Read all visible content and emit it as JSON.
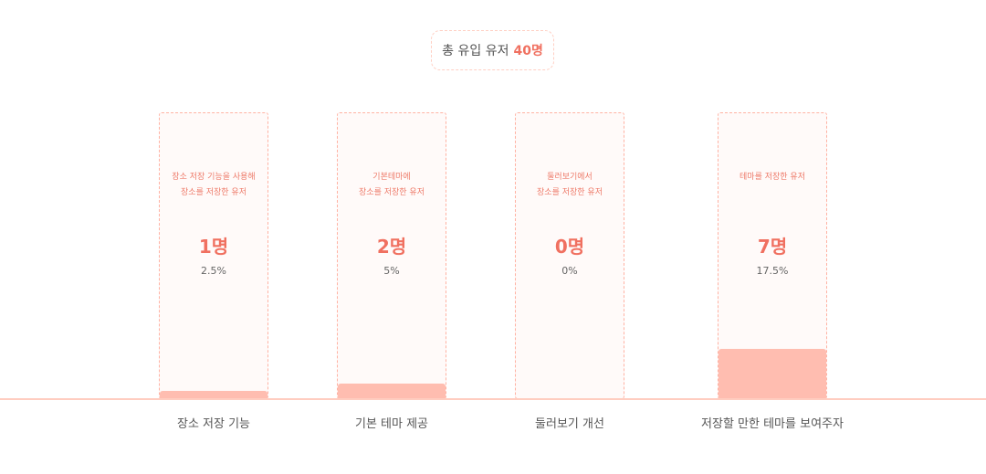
{
  "header": {
    "prefix": "총 유입 유저",
    "count": "40명"
  },
  "chart_data": {
    "type": "bar",
    "title": "",
    "total_users": 40,
    "categories": [
      "장소 저장 기능",
      "기본 테마 제공",
      "둘러보기 개선",
      "저장할 만한 테마를 보여주자"
    ],
    "descriptions": [
      "장소 저장 기능을 사용해\n장소를 저장한 유저",
      "기본테마에\n장소를 저장한 유저",
      "둘러보기에서\n장소를 저장한 유저",
      "테마를 저장한 유저"
    ],
    "count_labels": [
      "1명",
      "2명",
      "0명",
      "7명"
    ],
    "percent_labels": [
      "2.5%",
      "5%",
      "0%",
      "17.5%"
    ],
    "values": [
      1,
      2,
      0,
      7
    ],
    "percents": [
      2.5,
      5,
      0,
      17.5
    ],
    "ylim": [
      0,
      40
    ],
    "colors": {
      "accent": "#f07060",
      "bar": "#ffbdb0",
      "border": "#ffb2a3",
      "box": "#fffaf9"
    }
  }
}
